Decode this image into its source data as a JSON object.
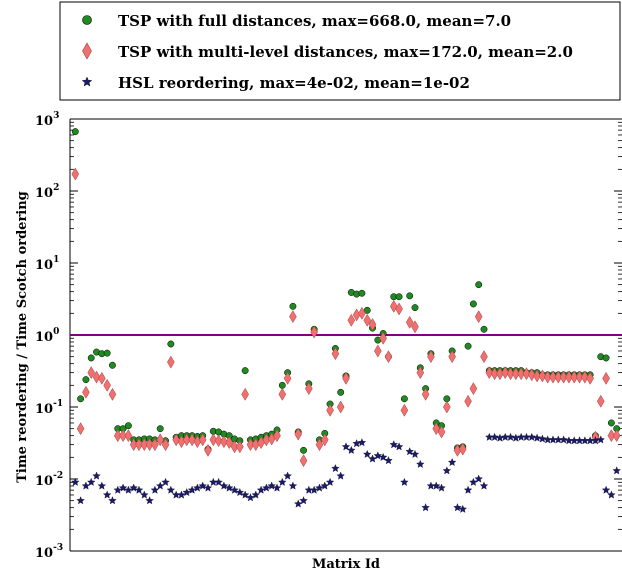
{
  "chart_data": {
    "type": "scatter",
    "title": "",
    "xlabel": "Matrix Id",
    "ylabel": "Time reordering / Time Scotch ordering",
    "yscale": "log",
    "ylim": [
      0.001,
      1000
    ],
    "xlim": [
      0,
      104
    ],
    "yticks": [
      {
        "value": 0.001,
        "base": "10",
        "exp": "-3"
      },
      {
        "value": 0.01,
        "base": "10",
        "exp": "-2"
      },
      {
        "value": 0.1,
        "base": "10",
        "exp": "-1"
      },
      {
        "value": 1,
        "base": "10",
        "exp": "0"
      },
      {
        "value": 10,
        "base": "10",
        "exp": "1"
      },
      {
        "value": 100,
        "base": "10",
        "exp": "2"
      },
      {
        "value": 1000,
        "base": "10",
        "exp": "3"
      }
    ],
    "reference_line": {
      "y": 1,
      "color": "#800080"
    },
    "legend_position": "top",
    "series": [
      {
        "name": "TSP with full distances, max=668.0, mean=7.0",
        "marker": "circle",
        "color": "#1f8a1f",
        "x": [
          1,
          2,
          3,
          4,
          5,
          6,
          7,
          8,
          9,
          10,
          11,
          12,
          13,
          14,
          15,
          16,
          17,
          18,
          19,
          20,
          21,
          22,
          23,
          24,
          25,
          26,
          27,
          28,
          29,
          30,
          31,
          32,
          33,
          34,
          35,
          36,
          37,
          38,
          39,
          40,
          41,
          42,
          43,
          44,
          45,
          46,
          47,
          48,
          49,
          50,
          51,
          52,
          53,
          54,
          55,
          56,
          57,
          58,
          59,
          60,
          61,
          62,
          63,
          64,
          65,
          66,
          67,
          68,
          69,
          70,
          71,
          72,
          73,
          74,
          75,
          76,
          77,
          78,
          79,
          80,
          81,
          82,
          83,
          84,
          85,
          86,
          87,
          88,
          89,
          90,
          91,
          92,
          93,
          94,
          95,
          96,
          97,
          98,
          99,
          100,
          101,
          102,
          103
        ],
        "y": [
          668,
          0.13,
          0.24,
          0.48,
          0.58,
          0.55,
          0.56,
          0.38,
          0.05,
          0.05,
          0.055,
          0.035,
          0.035,
          0.036,
          0.036,
          0.035,
          0.05,
          0.034,
          0.75,
          0.038,
          0.04,
          0.04,
          0.04,
          0.039,
          0.04,
          0.026,
          0.046,
          0.045,
          0.042,
          0.04,
          0.036,
          0.034,
          0.32,
          0.035,
          0.036,
          0.038,
          0.04,
          0.042,
          0.048,
          0.2,
          0.3,
          2.5,
          0.045,
          0.025,
          0.21,
          1.2,
          0.035,
          0.043,
          0.11,
          0.65,
          0.16,
          0.27,
          3.9,
          3.7,
          3.8,
          2.2,
          1.25,
          0.85,
          1.05,
          0.5,
          3.4,
          3.4,
          0.13,
          3.5,
          2.4,
          0.35,
          0.18,
          0.55,
          0.06,
          0.055,
          0.13,
          0.6,
          0.027,
          0.028,
          0.7,
          2.7,
          5.0,
          1.2,
          0.32,
          0.32,
          0.32,
          0.32,
          0.32,
          0.32,
          0.32,
          0.3,
          0.3,
          0.3,
          0.28,
          0.28,
          0.28,
          0.28,
          0.28,
          0.28,
          0.28,
          0.28,
          0.28,
          0.28,
          0.04,
          0.5,
          0.48,
          0.06,
          0.05
        ]
      },
      {
        "name": "TSP with multi-level distances, max=172.0, mean=2.0",
        "marker": "diamond",
        "color": "#f07070",
        "x": [
          1,
          2,
          3,
          4,
          5,
          6,
          7,
          8,
          9,
          10,
          11,
          12,
          13,
          14,
          15,
          16,
          17,
          18,
          19,
          20,
          21,
          22,
          23,
          24,
          25,
          26,
          27,
          28,
          29,
          30,
          31,
          32,
          33,
          34,
          35,
          36,
          37,
          38,
          39,
          40,
          41,
          42,
          43,
          44,
          45,
          46,
          47,
          48,
          49,
          50,
          51,
          52,
          53,
          54,
          55,
          56,
          57,
          58,
          59,
          60,
          61,
          62,
          63,
          64,
          65,
          66,
          67,
          68,
          69,
          70,
          71,
          72,
          73,
          74,
          75,
          76,
          77,
          78,
          79,
          80,
          81,
          82,
          83,
          84,
          85,
          86,
          87,
          88,
          89,
          90,
          91,
          92,
          93,
          94,
          95,
          96,
          97,
          98,
          99,
          100,
          101,
          102,
          103
        ],
        "y": [
          172,
          0.05,
          0.16,
          0.3,
          0.26,
          0.25,
          0.2,
          0.15,
          0.04,
          0.04,
          0.04,
          0.03,
          0.03,
          0.03,
          0.03,
          0.03,
          0.035,
          0.03,
          0.42,
          0.035,
          0.033,
          0.035,
          0.035,
          0.033,
          0.035,
          0.025,
          0.035,
          0.034,
          0.033,
          0.032,
          0.028,
          0.028,
          0.15,
          0.03,
          0.03,
          0.032,
          0.035,
          0.036,
          0.04,
          0.15,
          0.25,
          1.8,
          0.042,
          0.018,
          0.18,
          1.1,
          0.03,
          0.035,
          0.09,
          0.55,
          0.1,
          0.25,
          1.6,
          1.9,
          2.0,
          1.6,
          1.4,
          0.6,
          0.9,
          0.5,
          2.5,
          2.3,
          0.09,
          1.5,
          1.3,
          0.3,
          0.15,
          0.5,
          0.05,
          0.045,
          0.1,
          0.5,
          0.025,
          0.026,
          0.12,
          0.18,
          1.8,
          0.5,
          0.3,
          0.29,
          0.29,
          0.3,
          0.29,
          0.29,
          0.29,
          0.29,
          0.28,
          0.27,
          0.27,
          0.26,
          0.26,
          0.26,
          0.26,
          0.26,
          0.26,
          0.26,
          0.26,
          0.25,
          0.038,
          0.12,
          0.25,
          0.04,
          0.04
        ]
      },
      {
        "name": "HSL reordering, max=4e-02, mean=1e-02",
        "marker": "star",
        "color": "#1a1a6e",
        "x": [
          1,
          2,
          3,
          4,
          5,
          6,
          7,
          8,
          9,
          10,
          11,
          12,
          13,
          14,
          15,
          16,
          17,
          18,
          19,
          20,
          21,
          22,
          23,
          24,
          25,
          26,
          27,
          28,
          29,
          30,
          31,
          32,
          33,
          34,
          35,
          36,
          37,
          38,
          39,
          40,
          41,
          42,
          43,
          44,
          45,
          46,
          47,
          48,
          49,
          50,
          51,
          52,
          53,
          54,
          55,
          56,
          57,
          58,
          59,
          60,
          61,
          62,
          63,
          64,
          65,
          66,
          67,
          68,
          69,
          70,
          71,
          72,
          73,
          74,
          75,
          76,
          77,
          78,
          79,
          80,
          81,
          82,
          83,
          84,
          85,
          86,
          87,
          88,
          89,
          90,
          91,
          92,
          93,
          94,
          95,
          96,
          97,
          98,
          99,
          100,
          101,
          102,
          103
        ],
        "y": [
          0.009,
          0.005,
          0.008,
          0.009,
          0.011,
          0.008,
          0.006,
          0.005,
          0.007,
          0.0075,
          0.007,
          0.0075,
          0.007,
          0.006,
          0.005,
          0.007,
          0.008,
          0.009,
          0.007,
          0.006,
          0.006,
          0.0065,
          0.007,
          0.0075,
          0.008,
          0.0075,
          0.009,
          0.009,
          0.008,
          0.0075,
          0.007,
          0.0065,
          0.006,
          0.0055,
          0.006,
          0.007,
          0.0075,
          0.008,
          0.0075,
          0.009,
          0.011,
          0.008,
          0.0045,
          0.005,
          0.007,
          0.007,
          0.0075,
          0.008,
          0.009,
          0.014,
          0.011,
          0.028,
          0.025,
          0.031,
          0.032,
          0.022,
          0.019,
          0.021,
          0.02,
          0.018,
          0.03,
          0.028,
          0.009,
          0.024,
          0.022,
          0.016,
          0.004,
          0.008,
          0.008,
          0.0075,
          0.013,
          0.017,
          0.004,
          0.0038,
          0.007,
          0.009,
          0.01,
          0.008,
          0.038,
          0.038,
          0.037,
          0.038,
          0.038,
          0.037,
          0.038,
          0.038,
          0.038,
          0.037,
          0.036,
          0.035,
          0.035,
          0.035,
          0.035,
          0.034,
          0.034,
          0.034,
          0.034,
          0.034,
          0.034,
          0.035,
          0.007,
          0.006,
          0.013
        ]
      }
    ]
  }
}
